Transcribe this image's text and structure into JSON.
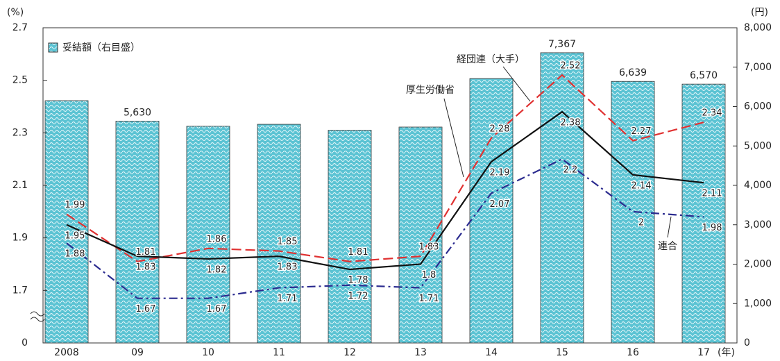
{
  "chart_data": {
    "type": "combo",
    "categories": [
      "2008",
      "09",
      "10",
      "11",
      "12",
      "13",
      "14",
      "15",
      "16",
      "17"
    ],
    "x_unit": "(年)",
    "ylabel": "(%)",
    "y2label": "(円)",
    "ylim": [
      0,
      2.7
    ],
    "y_break": true,
    "yticks": [
      0,
      1.7,
      1.9,
      2.1,
      2.3,
      2.5,
      2.7
    ],
    "y2lim": [
      0,
      8000
    ],
    "y2ticks": [
      0,
      {
        "value": 1000,
        "label": "1,000"
      },
      {
        "value": 2000,
        "label": "2,000"
      },
      {
        "value": 3000,
        "label": "3,000"
      },
      {
        "value": 4000,
        "label": "4,000"
      },
      {
        "value": 5000,
        "label": "5,000"
      },
      {
        "value": 6000,
        "label": "6,000"
      },
      {
        "value": 7000,
        "label": "7,000"
      },
      {
        "value": 8000,
        "label": "8,000"
      }
    ],
    "legend": "upper left",
    "series": [
      {
        "name": "妥結額（右目盛）",
        "type": "bar",
        "axis": "y2",
        "color": "#5bc3d3",
        "values": [
          6150,
          5630,
          5500,
          5550,
          5400,
          5480,
          6710,
          7367,
          6639,
          6570
        ],
        "value_labels": [
          null,
          "5,630",
          null,
          null,
          null,
          null,
          null,
          "7,367",
          "6,639",
          "6,570"
        ]
      },
      {
        "name": "経団連（大手）",
        "type": "line",
        "color": "#e03131",
        "style": "dashed",
        "values": [
          1.99,
          1.81,
          1.86,
          1.85,
          1.81,
          1.83,
          2.28,
          2.52,
          2.27,
          2.34
        ]
      },
      {
        "name": "厚生労働省",
        "type": "line",
        "color": "#111111",
        "style": "solid",
        "values": [
          1.95,
          1.83,
          1.82,
          1.83,
          1.78,
          1.8,
          2.19,
          2.38,
          2.14,
          2.11
        ]
      },
      {
        "name": "連合",
        "type": "line",
        "color": "#2b2b8f",
        "style": "dashdot",
        "values": [
          1.88,
          1.67,
          1.67,
          1.71,
          1.72,
          1.71,
          2.07,
          2.2,
          2.0,
          1.98
        ]
      }
    ]
  }
}
